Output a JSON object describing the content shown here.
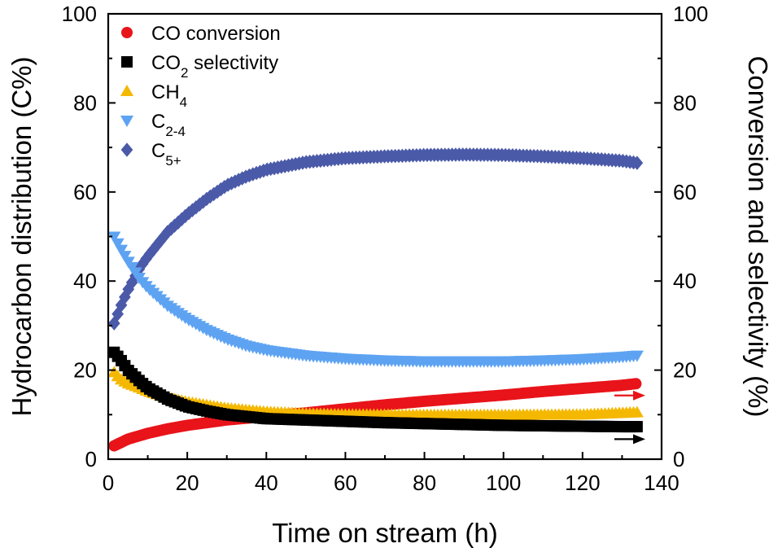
{
  "chart_data": {
    "type": "scatter",
    "xlabel": "Time on stream (h)",
    "ylabel_left": "Hydrocarbon distribution (C%)",
    "ylabel_right": "Conversion and selectivity (%)",
    "xlim": [
      0,
      140
    ],
    "ylim_left": [
      0,
      100
    ],
    "ylim_right": [
      0,
      100
    ],
    "x_ticks": [
      0,
      20,
      40,
      60,
      80,
      100,
      120,
      140
    ],
    "y_ticks": [
      0,
      20,
      40,
      60,
      80,
      100
    ],
    "grid": false,
    "legend_position": "top-left",
    "legend": [
      {
        "label": "CO conversion",
        "marker": "circle",
        "color": "#e8141a"
      },
      {
        "label": "CO",
        "sub": "2",
        "after": " selectivity",
        "marker": "square",
        "color": "#000000"
      },
      {
        "label": "CH",
        "sub": "4",
        "after": "",
        "marker": "triangle-up",
        "color": "#f5b800"
      },
      {
        "label": "C",
        "sub": "2-4",
        "after": "",
        "marker": "triangle-down",
        "color": "#5ea3f2"
      },
      {
        "label": "C",
        "sub": "5+",
        "after": "",
        "marker": "diamond",
        "color": "#4b5aa8"
      }
    ],
    "annotations": [
      {
        "type": "arrow",
        "direction": "right",
        "color": "#e8141a",
        "points_to": "CO conversion (right axis)"
      },
      {
        "type": "arrow",
        "direction": "right",
        "color": "#000000",
        "points_to": "CO2 selectivity (right axis)"
      }
    ],
    "series": [
      {
        "name": "CO conversion",
        "axis": "right",
        "marker": "circle",
        "color": "#e8141a",
        "x": [
          1.5,
          5,
          10,
          15,
          20,
          30,
          40,
          50,
          60,
          70,
          80,
          90,
          100,
          110,
          120,
          130,
          134
        ],
        "y": [
          3,
          4.5,
          5.8,
          6.8,
          7.6,
          8.8,
          9.6,
          10.4,
          11.3,
          12.2,
          13.0,
          13.7,
          14.4,
          15.2,
          15.9,
          16.6,
          17
        ]
      },
      {
        "name": "CO2 selectivity",
        "axis": "right",
        "marker": "square",
        "color": "#000000",
        "x": [
          1.5,
          3,
          5,
          8,
          10,
          15,
          20,
          25,
          30,
          40,
          50,
          60,
          70,
          80,
          90,
          100,
          110,
          120,
          130,
          134
        ],
        "y": [
          24,
          22.5,
          20,
          17.5,
          16,
          13.5,
          11.8,
          10.8,
          10,
          9.1,
          8.8,
          8.5,
          8.2,
          8.0,
          7.8,
          7.6,
          7.5,
          7.4,
          7.3,
          7.3
        ]
      },
      {
        "name": "CH4",
        "axis": "left",
        "marker": "triangle-up",
        "color": "#f5b800",
        "x": [
          1.5,
          3,
          5,
          8,
          10,
          15,
          20,
          30,
          40,
          50,
          60,
          80,
          100,
          120,
          134
        ],
        "y": [
          19.5,
          18,
          17,
          16,
          15.2,
          13.8,
          12.8,
          11.4,
          10.6,
          10.2,
          10.0,
          9.9,
          9.9,
          10.0,
          10.5
        ]
      },
      {
        "name": "C2-4",
        "axis": "left",
        "marker": "triangle-down",
        "color": "#5ea3f2",
        "x": [
          1.5,
          3,
          5,
          8,
          10,
          15,
          20,
          25,
          30,
          35,
          40,
          50,
          60,
          70,
          80,
          90,
          100,
          110,
          120,
          130,
          134
        ],
        "y": [
          50,
          47.5,
          44.5,
          40.5,
          38.5,
          34.5,
          31.5,
          29,
          27,
          25.5,
          24.5,
          23.3,
          22.6,
          22.2,
          22.0,
          22.0,
          22.0,
          22.2,
          22.5,
          23.0,
          23.3
        ]
      },
      {
        "name": "C5+",
        "axis": "left",
        "marker": "diamond",
        "color": "#4b5aa8",
        "x": [
          1.5,
          3,
          5,
          8,
          10,
          15,
          20,
          25,
          30,
          35,
          40,
          50,
          60,
          70,
          80,
          90,
          100,
          110,
          120,
          130,
          134
        ],
        "y": [
          30.5,
          34,
          38,
          43,
          45.5,
          51,
          55,
          58.5,
          61.5,
          63.5,
          65,
          66.7,
          67.6,
          68.0,
          68.3,
          68.4,
          68.3,
          68.0,
          67.6,
          67.0,
          66.5
        ]
      }
    ]
  }
}
